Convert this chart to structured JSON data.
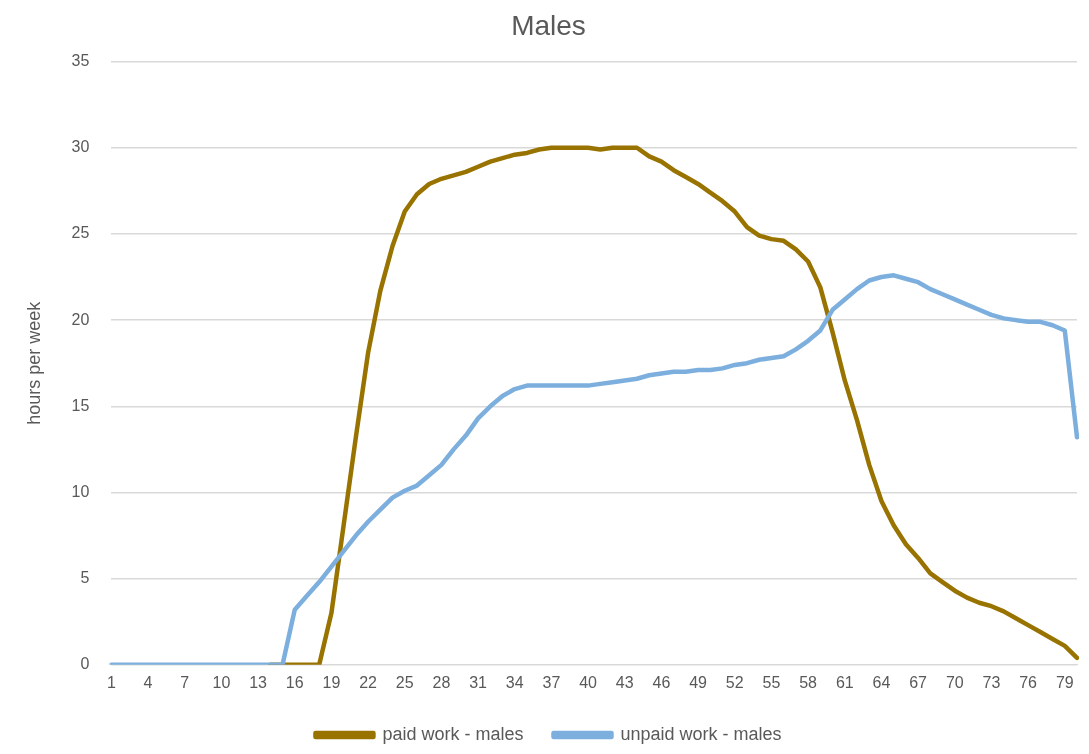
{
  "chart_data": {
    "type": "line",
    "title": "Males",
    "ylabel": "hours per week",
    "categories": [
      "1",
      null,
      null,
      "4",
      null,
      null,
      "7",
      null,
      null,
      "10",
      null,
      null,
      "13",
      null,
      null,
      "16",
      null,
      null,
      "19",
      null,
      null,
      "22",
      null,
      null,
      "25",
      null,
      null,
      "28",
      null,
      null,
      "31",
      null,
      null,
      "34",
      null,
      null,
      "37",
      null,
      null,
      "40",
      null,
      null,
      "43",
      null,
      null,
      "46",
      null,
      null,
      "49",
      null,
      null,
      "52",
      null,
      null,
      "55",
      null,
      null,
      "58",
      null,
      null,
      "61",
      null,
      null,
      "64",
      null,
      null,
      "67",
      null,
      null,
      "70",
      null,
      null,
      "73",
      null,
      null,
      "76",
      null,
      null,
      "79",
      null
    ],
    "series": [
      {
        "name": "paid work - males",
        "color": "#997300",
        "values": [
          null,
          null,
          null,
          null,
          null,
          null,
          null,
          null,
          null,
          null,
          null,
          null,
          null,
          0,
          0,
          0,
          0,
          0,
          3.0,
          8.1,
          13.2,
          18.1,
          21.7,
          24.3,
          26.3,
          27.3,
          27.9,
          28.2,
          28.4,
          28.6,
          28.9,
          29.2,
          29.4,
          29.6,
          29.7,
          29.9,
          30.0,
          30.0,
          30.0,
          30.0,
          29.9,
          30.0,
          30.0,
          30.0,
          29.5,
          29.2,
          28.7,
          28.3,
          27.9,
          27.4,
          26.9,
          26.3,
          25.4,
          24.9,
          24.7,
          24.6,
          24.1,
          23.4,
          21.9,
          19.3,
          16.5,
          14.2,
          11.6,
          9.5,
          8.1,
          7.0,
          6.2,
          5.3,
          4.8,
          4.3,
          3.9,
          3.6,
          3.4,
          3.1,
          2.7,
          2.3,
          1.9,
          1.5,
          1.1,
          0.4
        ]
      },
      {
        "name": "unpaid work - males",
        "color": "#7cafdd",
        "values": [
          0,
          0,
          0,
          0,
          0,
          0,
          0,
          0,
          0,
          0,
          0,
          0,
          0,
          0,
          0,
          3.2,
          4.0,
          4.8,
          5.7,
          6.6,
          7.5,
          8.3,
          9.0,
          9.7,
          10.1,
          10.4,
          11.0,
          11.6,
          12.5,
          13.3,
          14.3,
          15.0,
          15.6,
          16.0,
          16.2,
          16.2,
          16.2,
          16.2,
          16.2,
          16.2,
          16.3,
          16.4,
          16.5,
          16.6,
          16.8,
          16.9,
          17.0,
          17.0,
          17.1,
          17.1,
          17.2,
          17.4,
          17.5,
          17.7,
          17.8,
          17.9,
          18.3,
          18.8,
          19.4,
          20.6,
          21.2,
          21.8,
          22.3,
          22.5,
          22.6,
          22.4,
          22.2,
          21.8,
          21.5,
          21.2,
          20.9,
          20.6,
          20.3,
          20.1,
          20.0,
          19.9,
          19.9,
          19.7,
          19.4,
          13.2
        ]
      }
    ],
    "ylim": [
      0,
      35
    ],
    "yticks": [
      0,
      5,
      10,
      15,
      20,
      25,
      30,
      35
    ],
    "grid": "y",
    "legend": "bottom",
    "marker": "none",
    "line_style": "solid"
  }
}
